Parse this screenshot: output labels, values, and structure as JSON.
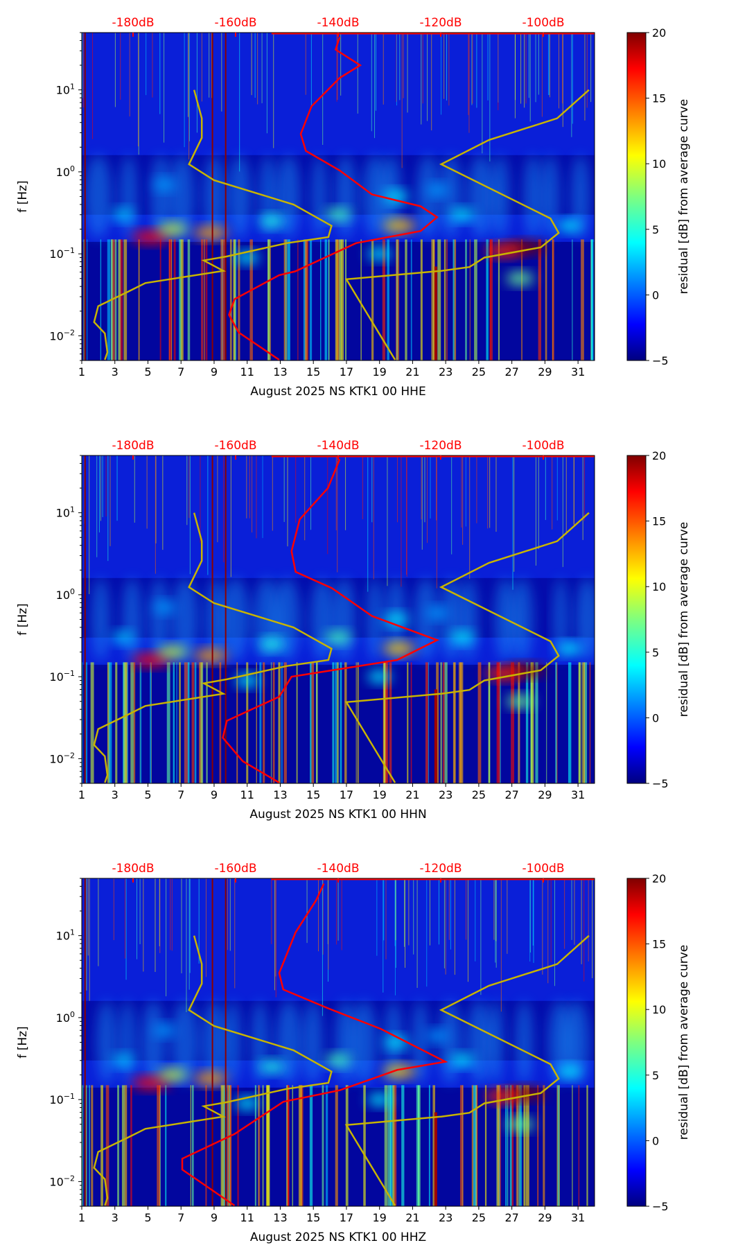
{
  "chart_data": [
    {
      "type": "heatmap",
      "xlabel": "August 2025 NS KTK1 00 HHE",
      "ylabel": "f [Hz]",
      "xlim": [
        1,
        32
      ],
      "ylim": [
        0.005,
        50
      ],
      "yscale": "log",
      "xticks": [
        "1",
        "3",
        "5",
        "7",
        "9",
        "11",
        "13",
        "15",
        "17",
        "19",
        "21",
        "23",
        "25",
        "27",
        "29",
        "31"
      ],
      "yticks": [
        {
          "base": "10",
          "exp": "1",
          "value": 10
        },
        {
          "base": "10",
          "exp": "0",
          "value": 1
        },
        {
          "base": "10",
          "exp": "−1",
          "value": 0.1
        },
        {
          "base": "10",
          "exp": "−2",
          "value": 0.01
        }
      ],
      "top_axis": {
        "range_db": [
          -190,
          -90
        ],
        "ticks": [
          {
            "label": "-180dB",
            "value": -180
          },
          {
            "label": "-160dB",
            "value": -160
          },
          {
            "label": "-140dB",
            "value": -140
          },
          {
            "label": "-120dB",
            "value": -120
          },
          {
            "label": "-100dB",
            "value": -100
          }
        ]
      },
      "colorbar": {
        "label": "residual [dB] from average curve",
        "range": [
          -5,
          20
        ],
        "ticks": [
          "20",
          "15",
          "10",
          "5",
          "0",
          "−5"
        ]
      },
      "median_curve_db_vs_f": [
        [
          -139.7,
          44
        ],
        [
          -140.5,
          31
        ],
        [
          -135.7,
          20
        ],
        [
          -139.7,
          14
        ],
        [
          -145.2,
          6.3
        ],
        [
          -147.3,
          2.9
        ],
        [
          -146.3,
          1.8
        ],
        [
          -139.7,
          1.04
        ],
        [
          -133.4,
          0.53
        ],
        [
          -123.9,
          0.38
        ],
        [
          -120.7,
          0.28
        ],
        [
          -123.9,
          0.19
        ],
        [
          -136.5,
          0.135
        ],
        [
          -148.4,
          0.061
        ],
        [
          -151.5,
          0.055
        ],
        [
          -160.2,
          0.028
        ],
        [
          -161.3,
          0.018
        ],
        [
          -159.4,
          0.011
        ],
        [
          -151.5,
          0.0051
        ]
      ]
    },
    {
      "type": "heatmap",
      "xlabel": "August 2025 NS KTK1 00 HHN",
      "ylabel": "f [Hz]",
      "xlim": [
        1,
        32
      ],
      "ylim": [
        0.005,
        50
      ],
      "yscale": "log",
      "xticks": [
        "1",
        "3",
        "5",
        "7",
        "9",
        "11",
        "13",
        "15",
        "17",
        "19",
        "21",
        "23",
        "25",
        "27",
        "29",
        "31"
      ],
      "yticks": [
        {
          "base": "10",
          "exp": "1",
          "value": 10
        },
        {
          "base": "10",
          "exp": "0",
          "value": 1
        },
        {
          "base": "10",
          "exp": "−1",
          "value": 0.1
        },
        {
          "base": "10",
          "exp": "−2",
          "value": 0.01
        }
      ],
      "top_axis": {
        "range_db": [
          -190,
          -90
        ],
        "ticks": [
          {
            "label": "-180dB",
            "value": -180
          },
          {
            "label": "-160dB",
            "value": -160
          },
          {
            "label": "-140dB",
            "value": -140
          },
          {
            "label": "-120dB",
            "value": -120
          },
          {
            "label": "-100dB",
            "value": -100
          }
        ]
      },
      "colorbar": {
        "label": "residual [dB] from average curve",
        "range": [
          -5,
          20
        ],
        "ticks": [
          "20",
          "15",
          "10",
          "5",
          "0",
          "−5"
        ]
      },
      "median_curve_db_vs_f": [
        [
          -139.7,
          45
        ],
        [
          -142,
          20
        ],
        [
          -147.5,
          8.3
        ],
        [
          -149.1,
          3.4
        ],
        [
          -148.3,
          1.9
        ],
        [
          -141.2,
          1.2
        ],
        [
          -133.4,
          0.55
        ],
        [
          -120.7,
          0.28
        ],
        [
          -128.5,
          0.16
        ],
        [
          -149.1,
          0.1
        ],
        [
          -151.5,
          0.057
        ],
        [
          -161.7,
          0.029
        ],
        [
          -162.5,
          0.018
        ],
        [
          -158.6,
          0.0093
        ],
        [
          -151.5,
          0.0051
        ]
      ]
    },
    {
      "type": "heatmap",
      "xlabel": "August 2025 NS KTK1 00 HHZ",
      "ylabel": "f [Hz]",
      "xlim": [
        1,
        32
      ],
      "ylim": [
        0.005,
        50
      ],
      "yscale": "log",
      "xticks": [
        "1",
        "3",
        "5",
        "7",
        "9",
        "11",
        "13",
        "15",
        "17",
        "19",
        "21",
        "23",
        "25",
        "27",
        "29",
        "31"
      ],
      "yticks": [
        {
          "base": "10",
          "exp": "1",
          "value": 10
        },
        {
          "base": "10",
          "exp": "0",
          "value": 1
        },
        {
          "base": "10",
          "exp": "−1",
          "value": 0.1
        },
        {
          "base": "10",
          "exp": "−2",
          "value": 0.01
        }
      ],
      "top_axis": {
        "range_db": [
          -190,
          -90
        ],
        "ticks": [
          {
            "label": "-180dB",
            "value": -180
          },
          {
            "label": "-160dB",
            "value": -160
          },
          {
            "label": "-140dB",
            "value": -140
          },
          {
            "label": "-120dB",
            "value": -120
          },
          {
            "label": "-100dB",
            "value": -100
          }
        ]
      },
      "colorbar": {
        "label": "residual [dB] from average curve",
        "range": [
          -5,
          20
        ],
        "ticks": [
          "20",
          "15",
          "10",
          "5",
          "0",
          "−5"
        ]
      },
      "median_curve_db_vs_f": [
        [
          -142.8,
          43
        ],
        [
          -144.3,
          27
        ],
        [
          -148.3,
          11
        ],
        [
          -151.5,
          3.5
        ],
        [
          -150.7,
          2.2
        ],
        [
          -142,
          1.3
        ],
        [
          -131.7,
          0.73
        ],
        [
          -119.1,
          0.29
        ],
        [
          -128.5,
          0.23
        ],
        [
          -139.7,
          0.13
        ],
        [
          -150.7,
          0.094
        ],
        [
          -160.2,
          0.038
        ],
        [
          -170.4,
          0.019
        ],
        [
          -170.4,
          0.014
        ],
        [
          -160.2,
          0.0051
        ]
      ]
    }
  ],
  "reference_curves": {
    "low_noise_model_db_vs_f": [
      [
        -168.1,
        10
      ],
      [
        -166.6,
        4.5
      ],
      [
        -166.6,
        2.6
      ],
      [
        -169.1,
        1.24
      ],
      [
        -164.2,
        0.79
      ],
      [
        -148.7,
        0.4
      ],
      [
        -141.3,
        0.22
      ],
      [
        -141.9,
        0.16
      ],
      [
        -150,
        0.135
      ],
      [
        -161.7,
        0.093
      ],
      [
        -166.2,
        0.083
      ],
      [
        -162.4,
        0.062
      ],
      [
        -177.6,
        0.044
      ],
      [
        -180.8,
        0.035
      ],
      [
        -186.8,
        0.023
      ],
      [
        -187.6,
        0.0147
      ],
      [
        -185.5,
        0.0107
      ],
      [
        -185,
        0.0063
      ],
      [
        -185.5,
        0.0051
      ]
    ],
    "high_noise_model_db_vs_f": [
      [
        -91.1,
        10
      ],
      [
        -97.3,
        4.5
      ],
      [
        -110.6,
        2.45
      ],
      [
        -119.9,
        1.24
      ],
      [
        -98.6,
        0.27
      ],
      [
        -97,
        0.18
      ],
      [
        -100.5,
        0.12
      ],
      [
        -111.5,
        0.09
      ],
      [
        -114.4,
        0.069
      ],
      [
        -119.9,
        0.062
      ],
      [
        -138.4,
        0.049
      ],
      [
        -128.9,
        0.0051
      ]
    ],
    "colors": {
      "median": "#ff0000",
      "models": "#c8b400",
      "db_axis": "#ff0000"
    }
  },
  "features": [
    {
      "day": 5.2,
      "f": 0.16,
      "residual": 17
    },
    {
      "day": 8.8,
      "f": 0.18,
      "residual": 13
    },
    {
      "day": 6.5,
      "f": 0.2,
      "residual": 9
    },
    {
      "day": 20.2,
      "f": 0.22,
      "residual": 12
    },
    {
      "day": 20,
      "f": 0.5,
      "residual": 4
    },
    {
      "day": 16.5,
      "f": 0.3,
      "residual": 6
    },
    {
      "day": 27.8,
      "f": 0.12,
      "residual": 20
    },
    {
      "day": 26.5,
      "f": 0.11,
      "residual": 16
    },
    {
      "day": 27.5,
      "f": 0.05,
      "residual": 7
    },
    {
      "day": 12.5,
      "f": 0.25,
      "residual": 5
    },
    {
      "day": 3.5,
      "f": 0.3,
      "residual": 3
    },
    {
      "day": 30.5,
      "f": 0.22,
      "residual": 4
    },
    {
      "day": 22.5,
      "f": 0.6,
      "residual": 2
    },
    {
      "day": 6,
      "f": 0.7,
      "residual": 2
    },
    {
      "day": 11,
      "f": 0.09,
      "residual": 4
    },
    {
      "day": 19,
      "f": 0.1,
      "residual": 4
    },
    {
      "day": 24,
      "f": 0.3,
      "residual": 4
    }
  ]
}
